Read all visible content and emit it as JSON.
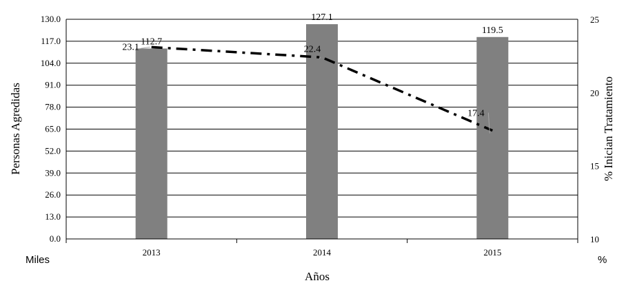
{
  "chart_data": {
    "type": "bar+line",
    "categories": [
      "2013",
      "2014",
      "2015"
    ],
    "xlabel": "Años",
    "ylabel_left": "Personas Agredidas",
    "ylabel_right": "% Inician Tratamiento",
    "left_unit": "Miles",
    "right_unit": "%",
    "ylim_left": [
      0,
      130
    ],
    "yticks_left": [
      "0.0",
      "13.0",
      "26.0",
      "39.0",
      "52.0",
      "65.0",
      "78.0",
      "91.0",
      "104.0",
      "117.0",
      "130.0"
    ],
    "ylim_right": [
      10,
      25
    ],
    "yticks_right": [
      "10",
      "15",
      "20",
      "25"
    ],
    "grid": true,
    "colors": {
      "bar": "#808080",
      "line": "#000000",
      "leader": "#a6a6a6"
    },
    "bars": {
      "values": [
        112.7,
        127.1,
        119.5
      ],
      "labels": [
        "112.7",
        "127.1",
        "119.5"
      ]
    },
    "line": {
      "style": "dash-dot",
      "values": [
        23.1,
        22.4,
        17.4
      ],
      "labels": [
        "23.1",
        "22.4",
        "17.4"
      ]
    }
  }
}
